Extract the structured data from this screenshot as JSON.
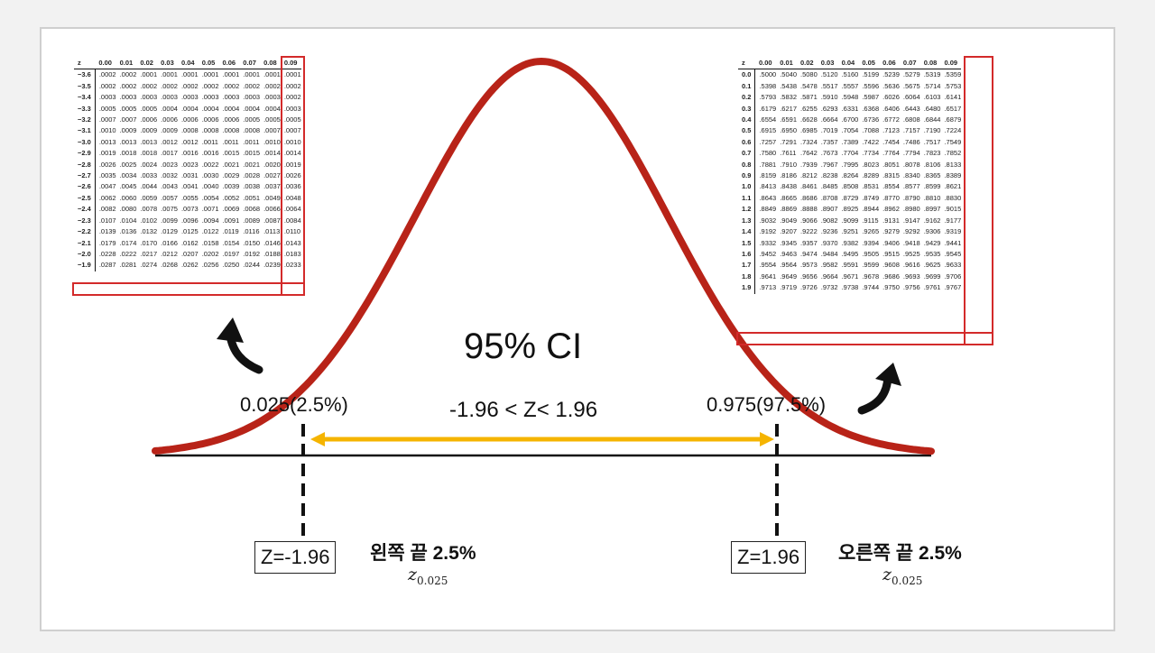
{
  "curve_color": "#b82318",
  "arrow_color": "#f5b400",
  "highlight_color": "#d32a2a",
  "labels": {
    "ci": "95% CI",
    "left_area": "0.025(2.5%)",
    "right_area": "0.975(97.5%)",
    "range": "-1.96 < Z< 1.96",
    "z_left": "Z=-1.96",
    "z_right": "Z=1.96",
    "tail_left": "왼쪽  끝 2.5%",
    "tail_right": "오른쪽 끝 2.5%",
    "sub_letter": "z",
    "sub_index": "0.025"
  },
  "left_table": {
    "header": [
      "z",
      "0.00",
      "0.01",
      "0.02",
      "0.03",
      "0.04",
      "0.05",
      "0.06",
      "0.07",
      "0.08",
      "0.09"
    ],
    "rows": [
      [
        "−3.6",
        ".0002",
        ".0002",
        ".0001",
        ".0001",
        ".0001",
        ".0001",
        ".0001",
        ".0001",
        ".0001",
        ".0001"
      ],
      [
        "−3.5",
        ".0002",
        ".0002",
        ".0002",
        ".0002",
        ".0002",
        ".0002",
        ".0002",
        ".0002",
        ".0002",
        ".0002"
      ],
      [
        "−3.4",
        ".0003",
        ".0003",
        ".0003",
        ".0003",
        ".0003",
        ".0003",
        ".0003",
        ".0003",
        ".0003",
        ".0002"
      ],
      [
        "−3.3",
        ".0005",
        ".0005",
        ".0005",
        ".0004",
        ".0004",
        ".0004",
        ".0004",
        ".0004",
        ".0004",
        ".0003"
      ],
      [
        "−3.2",
        ".0007",
        ".0007",
        ".0006",
        ".0006",
        ".0006",
        ".0006",
        ".0006",
        ".0005",
        ".0005",
        ".0005"
      ],
      [
        "−3.1",
        ".0010",
        ".0009",
        ".0009",
        ".0009",
        ".0008",
        ".0008",
        ".0008",
        ".0008",
        ".0007",
        ".0007"
      ],
      [
        "−3.0",
        ".0013",
        ".0013",
        ".0013",
        ".0012",
        ".0012",
        ".0011",
        ".0011",
        ".0011",
        ".0010",
        ".0010"
      ],
      [
        "−2.9",
        ".0019",
        ".0018",
        ".0018",
        ".0017",
        ".0016",
        ".0016",
        ".0015",
        ".0015",
        ".0014",
        ".0014"
      ],
      [
        "−2.8",
        ".0026",
        ".0025",
        ".0024",
        ".0023",
        ".0023",
        ".0022",
        ".0021",
        ".0021",
        ".0020",
        ".0019"
      ],
      [
        "−2.7",
        ".0035",
        ".0034",
        ".0033",
        ".0032",
        ".0031",
        ".0030",
        ".0029",
        ".0028",
        ".0027",
        ".0026"
      ],
      [
        "−2.6",
        ".0047",
        ".0045",
        ".0044",
        ".0043",
        ".0041",
        ".0040",
        ".0039",
        ".0038",
        ".0037",
        ".0036"
      ],
      [
        "−2.5",
        ".0062",
        ".0060",
        ".0059",
        ".0057",
        ".0055",
        ".0054",
        ".0052",
        ".0051",
        ".0049",
        ".0048"
      ],
      [
        "−2.4",
        ".0082",
        ".0080",
        ".0078",
        ".0075",
        ".0073",
        ".0071",
        ".0069",
        ".0068",
        ".0066",
        ".0064"
      ],
      [
        "−2.3",
        ".0107",
        ".0104",
        ".0102",
        ".0099",
        ".0096",
        ".0094",
        ".0091",
        ".0089",
        ".0087",
        ".0084"
      ],
      [
        "−2.2",
        ".0139",
        ".0136",
        ".0132",
        ".0129",
        ".0125",
        ".0122",
        ".0119",
        ".0116",
        ".0113",
        ".0110"
      ],
      [
        "−2.1",
        ".0179",
        ".0174",
        ".0170",
        ".0166",
        ".0162",
        ".0158",
        ".0154",
        ".0150",
        ".0146",
        ".0143"
      ],
      [
        "−2.0",
        ".0228",
        ".0222",
        ".0217",
        ".0212",
        ".0207",
        ".0202",
        ".0197",
        ".0192",
        ".0188",
        ".0183"
      ],
      [
        "−1.9",
        ".0287",
        ".0281",
        ".0274",
        ".0268",
        ".0262",
        ".0256",
        ".0250",
        ".0244",
        ".0239",
        ".0233"
      ]
    ]
  },
  "right_table": {
    "header": [
      "z",
      "0.00",
      "0.01",
      "0.02",
      "0.03",
      "0.04",
      "0.05",
      "0.06",
      "0.07",
      "0.08",
      "0.09"
    ],
    "rows": [
      [
        "0.0",
        ".5000",
        ".5040",
        ".5080",
        ".5120",
        ".5160",
        ".5199",
        ".5239",
        ".5279",
        ".5319",
        ".5359"
      ],
      [
        "0.1",
        ".5398",
        ".5438",
        ".5478",
        ".5517",
        ".5557",
        ".5596",
        ".5636",
        ".5675",
        ".5714",
        ".5753"
      ],
      [
        "0.2",
        ".5793",
        ".5832",
        ".5871",
        ".5910",
        ".5948",
        ".5987",
        ".6026",
        ".6064",
        ".6103",
        ".6141"
      ],
      [
        "0.3",
        ".6179",
        ".6217",
        ".6255",
        ".6293",
        ".6331",
        ".6368",
        ".6406",
        ".6443",
        ".6480",
        ".6517"
      ],
      [
        "0.4",
        ".6554",
        ".6591",
        ".6628",
        ".6664",
        ".6700",
        ".6736",
        ".6772",
        ".6808",
        ".6844",
        ".6879"
      ],
      [
        "0.5",
        ".6915",
        ".6950",
        ".6985",
        ".7019",
        ".7054",
        ".7088",
        ".7123",
        ".7157",
        ".7190",
        ".7224"
      ],
      [
        "0.6",
        ".7257",
        ".7291",
        ".7324",
        ".7357",
        ".7389",
        ".7422",
        ".7454",
        ".7486",
        ".7517",
        ".7549"
      ],
      [
        "0.7",
        ".7580",
        ".7611",
        ".7642",
        ".7673",
        ".7704",
        ".7734",
        ".7764",
        ".7794",
        ".7823",
        ".7852"
      ],
      [
        "0.8",
        ".7881",
        ".7910",
        ".7939",
        ".7967",
        ".7995",
        ".8023",
        ".8051",
        ".8078",
        ".8106",
        ".8133"
      ],
      [
        "0.9",
        ".8159",
        ".8186",
        ".8212",
        ".8238",
        ".8264",
        ".8289",
        ".8315",
        ".8340",
        ".8365",
        ".8389"
      ],
      [
        "1.0",
        ".8413",
        ".8438",
        ".8461",
        ".8485",
        ".8508",
        ".8531",
        ".8554",
        ".8577",
        ".8599",
        ".8621"
      ],
      [
        "1.1",
        ".8643",
        ".8665",
        ".8686",
        ".8708",
        ".8729",
        ".8749",
        ".8770",
        ".8790",
        ".8810",
        ".8830"
      ],
      [
        "1.2",
        ".8849",
        ".8869",
        ".8888",
        ".8907",
        ".8925",
        ".8944",
        ".8962",
        ".8980",
        ".8997",
        ".9015"
      ],
      [
        "1.3",
        ".9032",
        ".9049",
        ".9066",
        ".9082",
        ".9099",
        ".9115",
        ".9131",
        ".9147",
        ".9162",
        ".9177"
      ],
      [
        "1.4",
        ".9192",
        ".9207",
        ".9222",
        ".9236",
        ".9251",
        ".9265",
        ".9279",
        ".9292",
        ".9306",
        ".9319"
      ],
      [
        "1.5",
        ".9332",
        ".9345",
        ".9357",
        ".9370",
        ".9382",
        ".9394",
        ".9406",
        ".9418",
        ".9429",
        ".9441"
      ],
      [
        "1.6",
        ".9452",
        ".9463",
        ".9474",
        ".9484",
        ".9495",
        ".9505",
        ".9515",
        ".9525",
        ".9535",
        ".9545"
      ],
      [
        "1.7",
        ".9554",
        ".9564",
        ".9573",
        ".9582",
        ".9591",
        ".9599",
        ".9608",
        ".9616",
        ".9625",
        ".9633"
      ],
      [
        "1.8",
        ".9641",
        ".9649",
        ".9656",
        ".9664",
        ".9671",
        ".9678",
        ".9686",
        ".9693",
        ".9699",
        ".9706"
      ],
      [
        "1.9",
        ".9713",
        ".9719",
        ".9726",
        ".9732",
        ".9738",
        ".9744",
        ".9750",
        ".9756",
        ".9761",
        ".9767"
      ]
    ]
  }
}
